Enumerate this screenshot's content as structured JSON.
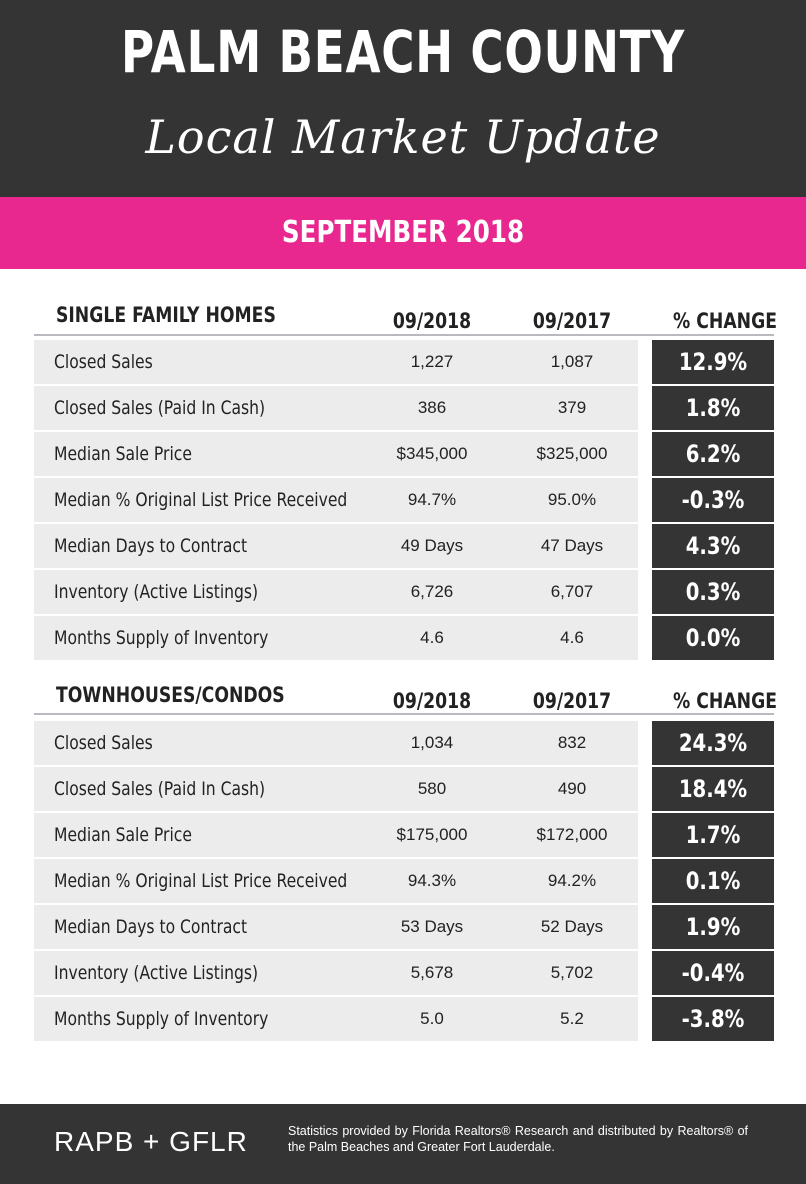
{
  "header": {
    "title": "PALM BEACH COUNTY",
    "subtitle": "Local Market Update"
  },
  "period": "SEPTEMBER 2018",
  "colors": {
    "dark": "#343434",
    "accent": "#e8288e",
    "row_bg": "#ececec"
  },
  "single_family": {
    "heading": "SINGLE FAMILY HOMES",
    "col1": "09/2018",
    "col2": "09/2017",
    "col3": "% CHANGE",
    "rows": [
      {
        "label": "Closed Sales",
        "v2018": "1,227",
        "v2017": "1,087",
        "change": "12.9%"
      },
      {
        "label": "Closed Sales (Paid In Cash)",
        "v2018": "386",
        "v2017": "379",
        "change": "1.8%"
      },
      {
        "label": "Median Sale Price",
        "v2018": "$345,000",
        "v2017": "$325,000",
        "change": "6.2%"
      },
      {
        "label": "Median % Original List Price Received",
        "v2018": "94.7%",
        "v2017": "95.0%",
        "change": "-0.3%"
      },
      {
        "label": "Median Days to Contract",
        "v2018": "49 Days",
        "v2017": "47 Days",
        "change": "4.3%"
      },
      {
        "label": "Inventory (Active Listings)",
        "v2018": "6,726",
        "v2017": "6,707",
        "change": "0.3%"
      },
      {
        "label": "Months Supply of Inventory",
        "v2018": "4.6",
        "v2017": "4.6",
        "change": "0.0%"
      }
    ]
  },
  "townhouses": {
    "heading": "TOWNHOUSES/CONDOS",
    "col1": "09/2018",
    "col2": "09/2017",
    "col3": "% CHANGE",
    "rows": [
      {
        "label": "Closed Sales",
        "v2018": "1,034",
        "v2017": "832",
        "change": "24.3%"
      },
      {
        "label": "Closed Sales (Paid In Cash)",
        "v2018": "580",
        "v2017": "490",
        "change": "18.4%"
      },
      {
        "label": "Median Sale Price",
        "v2018": "$175,000",
        "v2017": "$172,000",
        "change": "1.7%"
      },
      {
        "label": "Median % Original List Price Received",
        "v2018": "94.3%",
        "v2017": "94.2%",
        "change": "0.1%"
      },
      {
        "label": "Median Days to Contract",
        "v2018": "53 Days",
        "v2017": "52 Days",
        "change": "1.9%"
      },
      {
        "label": "Inventory (Active Listings)",
        "v2018": "5,678",
        "v2017": "5,702",
        "change": "-0.4%"
      },
      {
        "label": "Months Supply of Inventory",
        "v2018": "5.0",
        "v2017": "5.2",
        "change": "-3.8%"
      }
    ]
  },
  "footer": {
    "brand": "RAPB + GFLR",
    "note": "Statistics provided by Florida Realtors® Research and distributed by Realtors® of the Palm Beaches and Greater Fort Lauderdale."
  }
}
